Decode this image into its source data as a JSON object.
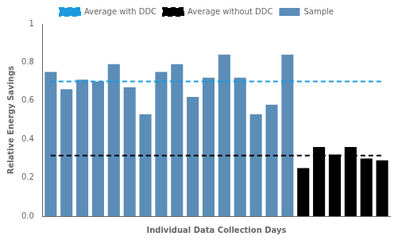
{
  "chart_data": {
    "type": "bar",
    "xlabel": "Individual Data Collection Days",
    "ylabel": "Relative Energy Savings",
    "categories": [
      null,
      null,
      null,
      null,
      null,
      null,
      null,
      null,
      null,
      null,
      null,
      null,
      null,
      null,
      null,
      null,
      null,
      null,
      null,
      null,
      null,
      null
    ],
    "series": [
      {
        "name": "Sample",
        "type": "bar",
        "values": [
          0.75,
          0.66,
          0.71,
          0.7,
          0.79,
          0.67,
          0.53,
          0.75,
          0.79,
          0.62,
          0.72,
          0.84,
          0.72,
          0.53,
          0.58,
          0.84,
          0.25,
          0.36,
          0.32,
          0.36,
          0.3,
          0.29
        ],
        "colors": [
          "#5B8DB8",
          "#5B8DB8",
          "#5B8DB8",
          "#5B8DB8",
          "#5B8DB8",
          "#5B8DB8",
          "#5B8DB8",
          "#5B8DB8",
          "#5B8DB8",
          "#5B8DB8",
          "#5B8DB8",
          "#5B8DB8",
          "#5B8DB8",
          "#5B8DB8",
          "#5B8DB8",
          "#5B8DB8",
          "#000000",
          "#000000",
          "#000000",
          "#000000",
          "#000000",
          "#000000"
        ]
      },
      {
        "name": "Average with DDC",
        "type": "line",
        "line_style": "dashed",
        "color": "#1B9AE0",
        "values": [
          0.7,
          0.7,
          0.7,
          0.7,
          0.7,
          0.7,
          0.7,
          0.7,
          0.7,
          0.7,
          0.7,
          0.7,
          0.7,
          0.7,
          0.7,
          0.7,
          0.7,
          0.7,
          0.7,
          0.7,
          0.7,
          0.7
        ]
      },
      {
        "name": "Average without DDC",
        "type": "line",
        "line_style": "dashed",
        "color": "#000000",
        "values": [
          0.315,
          0.315,
          0.315,
          0.315,
          0.315,
          0.315,
          0.315,
          0.315,
          0.315,
          0.315,
          0.315,
          0.315,
          0.315,
          0.315,
          0.315,
          0.315,
          0.315,
          0.315,
          0.315,
          0.315,
          0.315,
          0.315
        ]
      }
    ],
    "ylim": [
      0,
      1
    ],
    "yticks": [
      {
        "value": 0,
        "label": "0.0"
      },
      0.2,
      0.4,
      0.6,
      0.8,
      1
    ],
    "grid": false,
    "legend": "top",
    "tick_labels": "y"
  }
}
